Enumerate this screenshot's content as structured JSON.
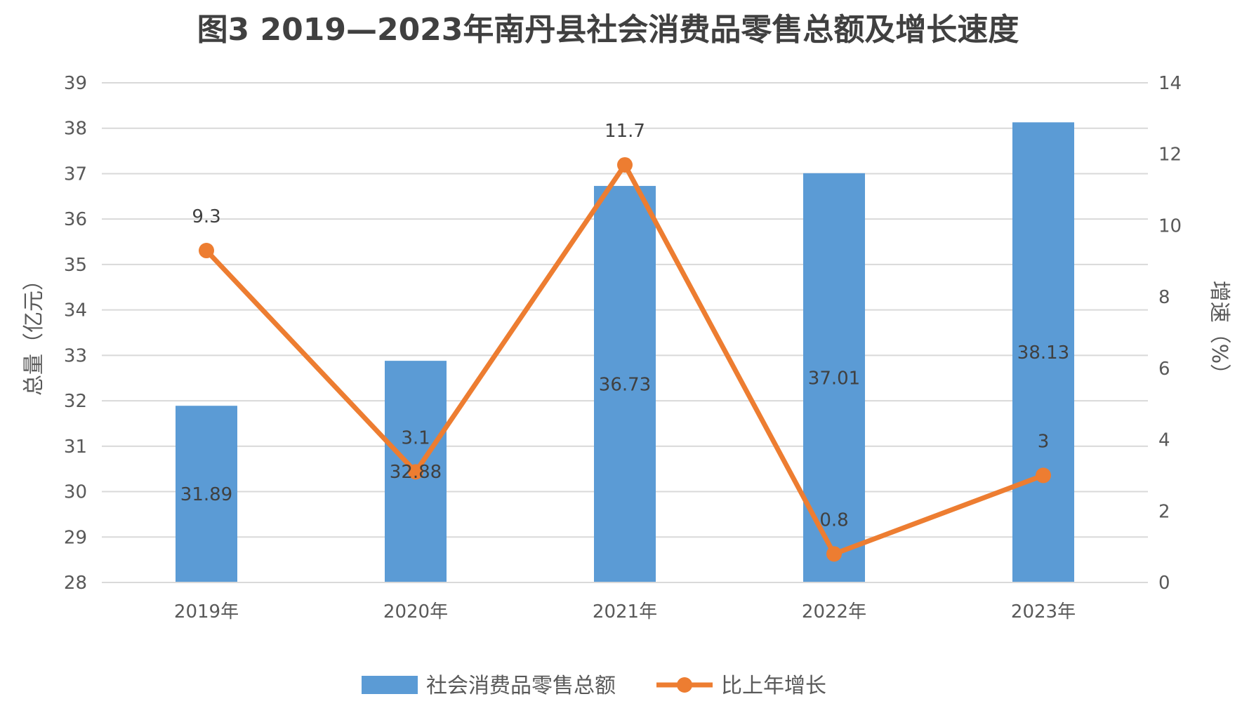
{
  "chart_data": {
    "type": "bar+line",
    "title": "图3  2019—2023年南丹县社会消费品零售总额及增长速度",
    "categories": [
      "2019年",
      "2020年",
      "2021年",
      "2022年",
      "2023年"
    ],
    "series": [
      {
        "name": "社会消费品零售总额",
        "type": "bar",
        "axis": "left",
        "values": [
          31.89,
          32.88,
          36.73,
          37.01,
          38.13
        ],
        "labels": [
          "31.89",
          "32.88",
          "36.73",
          "37.01",
          "38.13"
        ],
        "color": "#5B9BD5"
      },
      {
        "name": "比上年增长",
        "type": "line",
        "axis": "right",
        "values": [
          9.3,
          3.1,
          11.7,
          0.8,
          3
        ],
        "labels": [
          "9.3",
          "3.1",
          "11.7",
          "0.8",
          "3"
        ],
        "color": "#ED7D31"
      }
    ],
    "ylabel": "总量（亿元）",
    "ylabel_right": "增速（%）",
    "ylim": [
      28,
      39
    ],
    "yticks": [
      "28",
      "29",
      "30",
      "31",
      "32",
      "33",
      "34",
      "35",
      "36",
      "37",
      "38",
      "39"
    ],
    "ylim_right": [
      0,
      14
    ],
    "yticks_right": [
      "0",
      "2",
      "4",
      "6",
      "8",
      "10",
      "12",
      "14"
    ],
    "grid": true,
    "legend_position": "bottom"
  },
  "colors": {
    "grid": "#D9D9D9",
    "text": "#595959"
  }
}
